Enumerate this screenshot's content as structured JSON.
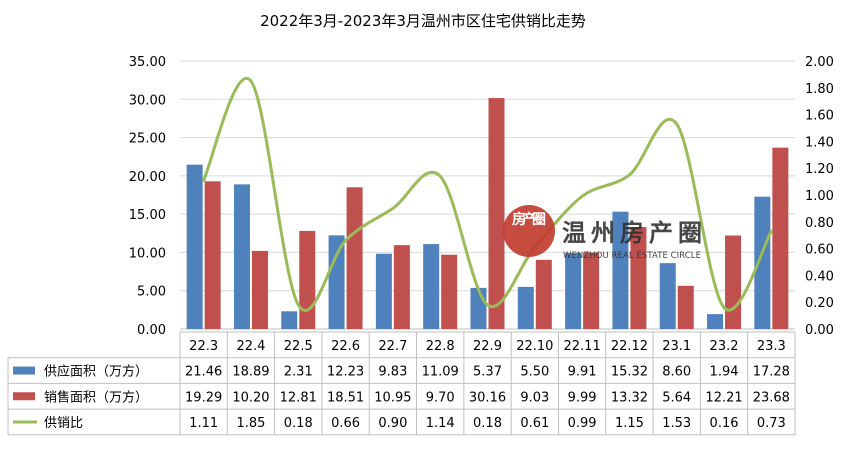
{
  "chart_data": {
    "type": "bar",
    "title": "2022年3月-2023年3月温州市区住宅供销比走势",
    "categories": [
      "22.3",
      "22.4",
      "22.5",
      "22.6",
      "22.7",
      "22.8",
      "22.9",
      "22.10",
      "22.11",
      "22.12",
      "23.1",
      "23.2",
      "23.3"
    ],
    "series": [
      {
        "name": "供应面积（万方）",
        "kind": "bar",
        "axis": "left",
        "color": "#4F81BD",
        "values": [
          21.46,
          18.89,
          2.31,
          12.23,
          9.83,
          11.09,
          5.37,
          5.5,
          9.91,
          15.32,
          8.6,
          1.94,
          17.28
        ]
      },
      {
        "name": "销售面积（万方）",
        "kind": "bar",
        "axis": "left",
        "color": "#C0504D",
        "values": [
          19.29,
          10.2,
          12.81,
          18.51,
          10.95,
          9.7,
          30.16,
          9.03,
          9.99,
          13.32,
          5.64,
          12.21,
          23.68
        ]
      },
      {
        "name": "供销比",
        "kind": "line",
        "axis": "right",
        "color": "#9BBB59",
        "values": [
          1.11,
          1.85,
          0.18,
          0.66,
          0.9,
          1.14,
          0.18,
          0.61,
          0.99,
          1.15,
          1.53,
          0.16,
          0.73
        ]
      }
    ],
    "y_left": {
      "min": 0,
      "max": 35,
      "step": 5,
      "tick_labels": [
        "0.00",
        "5.00",
        "10.00",
        "15.00",
        "20.00",
        "25.00",
        "30.00",
        "35.00"
      ]
    },
    "y_right": {
      "min": 0,
      "max": 2,
      "step": 0.2,
      "tick_labels": [
        "0.00",
        "0.20",
        "0.40",
        "0.60",
        "0.80",
        "1.00",
        "1.20",
        "1.40",
        "1.60",
        "1.80",
        "2.00"
      ]
    },
    "grid": true,
    "legend": "data-table-bottom",
    "data_table": {
      "rows": [
        {
          "label": "供应面积（万方）",
          "cells": [
            "21.46",
            "18.89",
            "2.31",
            "12.23",
            "9.83",
            "11.09",
            "5.37",
            "5.50",
            "9.91",
            "15.32",
            "8.60",
            "1.94",
            "17.28"
          ]
        },
        {
          "label": "销售面积（万方）",
          "cells": [
            "19.29",
            "10.20",
            "12.81",
            "18.51",
            "10.95",
            "9.70",
            "30.16",
            "9.03",
            "9.99",
            "13.32",
            "5.64",
            "12.21",
            "23.68"
          ]
        },
        {
          "label": "供销比",
          "cells": [
            "1.11",
            "1.85",
            "0.18",
            "0.66",
            "0.90",
            "1.14",
            "0.18",
            "0.61",
            "0.99",
            "1.15",
            "1.53",
            "0.16",
            "0.73"
          ]
        }
      ]
    }
  },
  "watermark": {
    "badge_text": "房产圈",
    "cn_text": "温州房产圈",
    "en_text": "WENZHOU REAL ESTATE CIRCLE",
    "color": "#C0392B"
  }
}
